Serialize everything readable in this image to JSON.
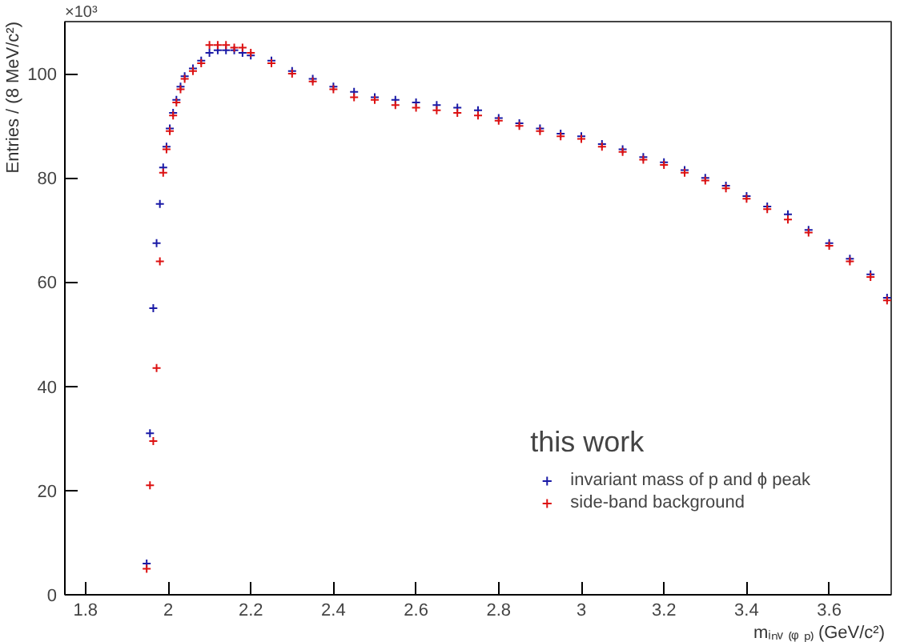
{
  "chart_data": {
    "type": "scatter",
    "xlabel": "mᵢₙᵥ ₍ᵩ ₚ₎ (GeV/c²)",
    "ylabel": "Entries / (8 MeV/c²)",
    "legend_title": "this work",
    "annotations": [
      "×10³"
    ],
    "x": [
      1.948,
      1.956,
      1.964,
      1.972,
      1.98,
      1.988,
      1.996,
      2.004,
      2.012,
      2.02,
      2.03,
      2.04,
      2.06,
      2.08,
      2.1,
      2.12,
      2.14,
      2.16,
      2.18,
      2.2,
      2.25,
      2.3,
      2.35,
      2.4,
      2.45,
      2.5,
      2.55,
      2.6,
      2.65,
      2.7,
      2.75,
      2.8,
      2.85,
      2.9,
      2.95,
      3.0,
      3.05,
      3.1,
      3.15,
      3.2,
      3.25,
      3.3,
      3.35,
      3.4,
      3.45,
      3.5,
      3.55,
      3.6,
      3.65,
      3.7,
      3.74
    ],
    "series": [
      {
        "name": "invariant mass of p and ϕ peak",
        "color": "#1a1aa6",
        "values": [
          6,
          31,
          55,
          67.5,
          75,
          82,
          86,
          89.5,
          92.5,
          95,
          97.5,
          99.5,
          101,
          102.5,
          104,
          104.5,
          104.5,
          104.5,
          104,
          103.5,
          102.5,
          100.5,
          99,
          97.5,
          96.5,
          95.5,
          95,
          94.5,
          94,
          93.5,
          93,
          91.5,
          90.5,
          89.5,
          88.5,
          88,
          86.5,
          85.5,
          84,
          83,
          81.5,
          80,
          78.5,
          76.5,
          74.5,
          73,
          70,
          67.5,
          64.5,
          61.5,
          57
        ]
      },
      {
        "name": "side-band background",
        "color": "#dd1111",
        "values": [
          5,
          21,
          29.5,
          43.5,
          64,
          81,
          85.5,
          89,
          92,
          94.5,
          97,
          99,
          100.5,
          102,
          105.5,
          105.5,
          105.5,
          105,
          105,
          104,
          102,
          100,
          98.5,
          97,
          95.5,
          95,
          94,
          93.5,
          93,
          92.5,
          92,
          91,
          90,
          89,
          88,
          87.5,
          86,
          85,
          83.5,
          82.5,
          81,
          79.5,
          78,
          76,
          74,
          72,
          69.5,
          67,
          64,
          61,
          56.5
        ]
      }
    ],
    "xlim": [
      1.75,
      3.75
    ],
    "ylim": [
      0,
      110
    ],
    "xticks": [
      1.8,
      2,
      2.2,
      2.4,
      2.6,
      2.8,
      3,
      3.2,
      3.4,
      3.6
    ],
    "yticks": [
      0,
      20,
      40,
      60,
      80,
      100
    ],
    "grid": false,
    "legend": "bottom right",
    "marker": "cross"
  }
}
